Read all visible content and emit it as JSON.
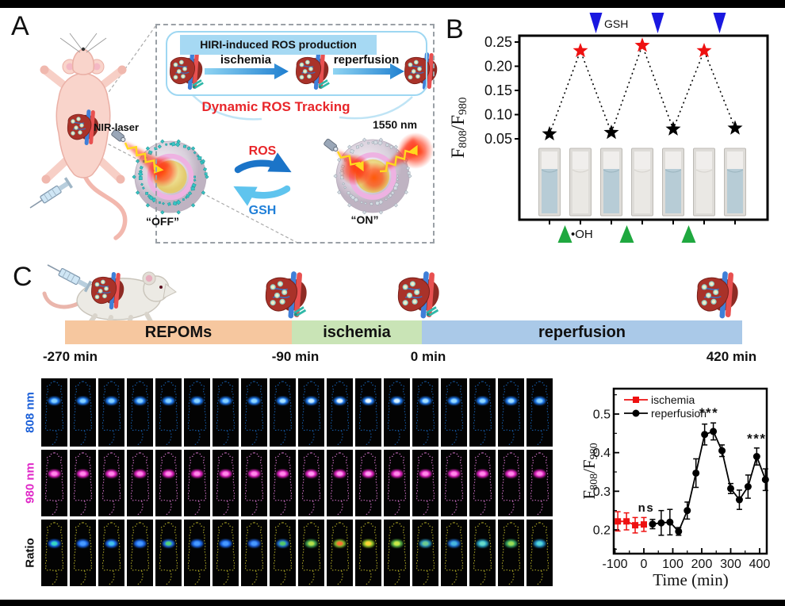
{
  "accent_colors": {
    "red": "#e8262a",
    "blue_arrow": "#1f7fd8",
    "chip_bg": "#a6d9f3",
    "gsh_tri": "#1a18e0",
    "oh_tri": "#1fa83f"
  },
  "panel_a": {
    "letter": "A",
    "header": "HIRI-induced ROS production",
    "flow_labels": [
      "ischemia",
      "reperfusion"
    ],
    "tracking_title": "Dynamic ROS Tracking",
    "nir_laser_label": "NIR-laser",
    "emission_label": "1550 nm",
    "cycle_up": "ROS",
    "cycle_down": "GSH",
    "off_label": "“OFF”",
    "on_label": "“ON”"
  },
  "panel_b": {
    "letter": "B",
    "gsh_label": "GSH",
    "oh_label": "•OH"
  },
  "panel_c": {
    "letter": "C",
    "timeline": {
      "segments": [
        {
          "label": "REPOMs",
          "color": "#f6c79f"
        },
        {
          "label": "ischemia",
          "color": "#c9e4b6"
        },
        {
          "label": "reperfusion",
          "color": "#aac9e8"
        }
      ],
      "times": [
        "-270 min",
        "-90 min",
        "0 min",
        "420 min"
      ]
    },
    "imaging": {
      "columns": 18,
      "rows": [
        {
          "label": "808 nm",
          "label_color": "#1a5fd8",
          "outline": "#15569e",
          "spot_main": "#1d7dfc",
          "spot_cores": [
            "#86d2ff",
            "#86d2ff",
            "#86d2ff",
            "#8ad4ff",
            "#86d2ff",
            "#8ad4ff",
            "#86d2ff",
            "#90d8ff",
            "#a8e2ff",
            "#c8eeff",
            "#e8f9ff",
            "#eefbff",
            "#d8f3ff",
            "#a8e2ff",
            "#98dcff",
            "#90d8ff",
            "#a0deff",
            "#8ad4ff"
          ]
        },
        {
          "label": "980 nm",
          "label_color": "#e028c8",
          "outline": "#c66cbe",
          "spot_main": "#ee22cc",
          "spot_cores": [
            "#ff8ae8",
            "#ff8ae8",
            "#ff8ae8",
            "#ff8ae8",
            "#ff8ae8",
            "#ff8ae8",
            "#ff8ae8",
            "#ff8ae8",
            "#ff8ae8",
            "#ff9df0",
            "#ff9df0",
            "#ff9df0",
            "#ff8ae8",
            "#ff8ae8",
            "#ff8ae8",
            "#ff8ae8",
            "#ff8ae8",
            "#ff8ae8"
          ]
        },
        {
          "label": "Ratio",
          "label_color": "#111111",
          "outline": "#a8a226",
          "spot_mains": [
            "#1565f0",
            "#1e6ef8",
            "#1e6ef8",
            "#1e6ef8",
            "#2070f0",
            "#1e6ef8",
            "#1e6ef8",
            "#2066e8",
            "#2277e0",
            "#44aa55",
            "#88c433",
            "#96cc2a",
            "#58b846",
            "#2b99c4",
            "#2377dd",
            "#28a4c8",
            "#38aa66",
            "#2898cc"
          ],
          "spot_cores": [
            "#38d8c0",
            "#4a9bff",
            "#44c4e8",
            "#4a9bff",
            "#52d478",
            "#4a9bff",
            "#4a9bff",
            "#4a9bff",
            "#55c868",
            "#b8e048",
            "#ff7030",
            "#ffd435",
            "#cce84a",
            "#6ecc90",
            "#48b8dd",
            "#68dcc8",
            "#9cdc55",
            "#58dada"
          ]
        }
      ]
    }
  },
  "chart_data": [
    {
      "type": "scatter",
      "panel": "B",
      "ylabel_parts": [
        [
          "F",
          false
        ],
        [
          "808",
          true
        ],
        [
          "/F",
          false
        ],
        [
          "980",
          true
        ]
      ],
      "yticks": [
        0.25,
        0.2,
        0.15,
        0.1,
        0.05
      ],
      "ylim": [
        0.045,
        0.263
      ],
      "values": [
        0.06,
        0.232,
        0.063,
        0.243,
        0.07,
        0.232,
        0.072
      ],
      "point_colors": [
        "#000000",
        "#ee1111",
        "#000000",
        "#ee1111",
        "#000000",
        "#ee1111",
        "#000000"
      ],
      "gsh_arrows_between": [
        [
          1,
          2
        ],
        [
          3,
          4
        ],
        [
          5,
          6
        ]
      ],
      "oh_arrows_between": [
        [
          0,
          1
        ],
        [
          2,
          3
        ],
        [
          4,
          5
        ]
      ],
      "cuvette_liquids": [
        "blue",
        "clear",
        "blue",
        "clear",
        "blue",
        "clear",
        "blue"
      ],
      "cuvette_liquid_colors": {
        "blue": "#b7ccd6",
        "clear": "#eae8e4"
      },
      "grid": false
    },
    {
      "type": "line",
      "panel": "C",
      "xlabel": "Time (min)",
      "ylabel_parts": [
        [
          "F",
          false
        ],
        [
          "808",
          true
        ],
        [
          "/F",
          false
        ],
        [
          "980",
          true
        ]
      ],
      "xticks": [
        -100,
        0,
        100,
        200,
        300,
        400
      ],
      "yticks": [
        0.2,
        0.3,
        0.4,
        0.5
      ],
      "xlim": [
        -104,
        425
      ],
      "ylim": [
        0.138,
        0.565
      ],
      "legend_position": "top-left",
      "series": [
        {
          "name": "ischemia",
          "color": "#ee1111",
          "marker": "square",
          "x": [
            -90,
            -60,
            -30,
            0
          ],
          "y": [
            0.222,
            0.222,
            0.212,
            0.214
          ],
          "err": [
            0.025,
            0.022,
            0.02,
            0.018
          ]
        },
        {
          "name": "reperfusion",
          "color": "#000000",
          "marker": "circle",
          "x": [
            30,
            60,
            90,
            120,
            150,
            180,
            210,
            240,
            270,
            300,
            330,
            360,
            390,
            420
          ],
          "y": [
            0.215,
            0.218,
            0.22,
            0.196,
            0.25,
            0.347,
            0.447,
            0.455,
            0.405,
            0.307,
            0.278,
            0.312,
            0.39,
            0.33
          ],
          "err": [
            0.012,
            0.032,
            0.033,
            0.01,
            0.022,
            0.037,
            0.027,
            0.022,
            0.015,
            0.013,
            0.025,
            0.03,
            0.022,
            0.028
          ]
        }
      ],
      "annotations": [
        {
          "text": "ns",
          "x": 8,
          "y": 0.247
        },
        {
          "text": "***",
          "x": 225,
          "y": 0.492
        },
        {
          "text": "***",
          "x": 390,
          "y": 0.425
        }
      ]
    }
  ]
}
